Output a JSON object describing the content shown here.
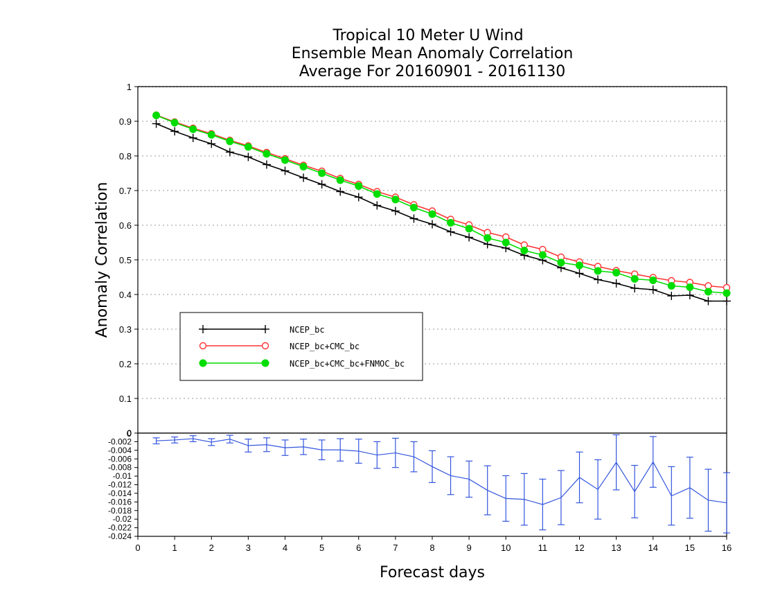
{
  "chart_data": [
    {
      "type": "line",
      "title": [
        "Tropical 10 Meter U Wind",
        "Ensemble Mean Anomaly Correlation",
        "Average For 20160901 - 20161130"
      ],
      "xlabel": "Forecast days",
      "ylabel": "Anomaly Correlation",
      "xlim": [
        0,
        16
      ],
      "ylim": [
        0,
        1
      ],
      "xticks": [
        "0",
        "1",
        "2",
        "3",
        "4",
        "5",
        "6",
        "7",
        "8",
        "9",
        "10",
        "11",
        "12",
        "13",
        "14",
        "15",
        "16"
      ],
      "yticks": [
        "0",
        "0.1",
        "0.2",
        "0.3",
        "0.4",
        "0.5",
        "0.6",
        "0.7",
        "0.8",
        "0.9",
        "1"
      ],
      "grid": "horizontal dotted",
      "legend_position": "lower-left",
      "x": [
        0.5,
        1,
        1.5,
        2,
        2.5,
        3,
        3.5,
        4,
        4.5,
        5,
        5.5,
        6,
        6.5,
        7,
        7.5,
        8,
        8.5,
        9,
        9.5,
        10,
        10.5,
        11,
        11.5,
        12,
        12.5,
        13,
        13.5,
        14,
        14.5,
        15,
        15.5,
        16
      ],
      "series": [
        {
          "name": "NCEP_bc",
          "color": "#000000",
          "marker": "plus",
          "values": [
            0.893,
            0.871,
            0.852,
            0.835,
            0.811,
            0.797,
            0.775,
            0.757,
            0.737,
            0.718,
            0.697,
            0.681,
            0.657,
            0.641,
            0.619,
            0.603,
            0.581,
            0.565,
            0.545,
            0.534,
            0.513,
            0.499,
            0.477,
            0.461,
            0.443,
            0.432,
            0.418,
            0.414,
            0.396,
            0.398,
            0.381,
            0.381
          ]
        },
        {
          "name": "NCEP_bc+CMC_bc",
          "color": "#ff3333",
          "marker": "open-circle",
          "values": [
            0.918,
            0.898,
            0.88,
            0.864,
            0.845,
            0.829,
            0.81,
            0.792,
            0.773,
            0.756,
            0.735,
            0.718,
            0.697,
            0.681,
            0.659,
            0.641,
            0.617,
            0.601,
            0.579,
            0.566,
            0.543,
            0.53,
            0.508,
            0.494,
            0.481,
            0.469,
            0.459,
            0.449,
            0.44,
            0.435,
            0.425,
            0.42
          ]
        },
        {
          "name": "NCEP_bc+CMC_bc+FNMOC_bc",
          "color": "#00dd00",
          "marker": "filled-circle",
          "values": [
            0.917,
            0.896,
            0.877,
            0.861,
            0.842,
            0.826,
            0.806,
            0.788,
            0.769,
            0.75,
            0.73,
            0.713,
            0.69,
            0.674,
            0.651,
            0.632,
            0.607,
            0.59,
            0.563,
            0.55,
            0.527,
            0.514,
            0.492,
            0.484,
            0.468,
            0.463,
            0.445,
            0.441,
            0.425,
            0.421,
            0.408,
            0.404
          ]
        }
      ]
    },
    {
      "type": "line",
      "subtype": "difference with error bars",
      "xlim": [
        0,
        16
      ],
      "ylim": [
        -0.024,
        0
      ],
      "yticks": [
        "0",
        "-0.002",
        "-0.004",
        "-0.006",
        "-0.008",
        "-0.01",
        "-0.012",
        "-0.014",
        "-0.016",
        "-0.018",
        "-0.02",
        "-0.022",
        "-0.024"
      ],
      "x": [
        0.5,
        1,
        1.5,
        2,
        2.5,
        3,
        3.5,
        4,
        4.5,
        5,
        5.5,
        6,
        6.5,
        7,
        7.5,
        8,
        8.5,
        9,
        9.5,
        10,
        10.5,
        11,
        11.5,
        12,
        12.5,
        13,
        13.5,
        14,
        14.5,
        15,
        15.5,
        16
      ],
      "series": [
        {
          "color": "#3355dd",
          "values": [
            -0.0018,
            -0.0016,
            -0.0013,
            -0.0021,
            -0.0014,
            -0.0029,
            -0.0027,
            -0.0034,
            -0.0032,
            -0.0039,
            -0.0039,
            -0.0042,
            -0.0051,
            -0.0046,
            -0.0055,
            -0.0078,
            -0.0099,
            -0.0107,
            -0.0133,
            -0.0152,
            -0.0154,
            -0.0166,
            -0.015,
            -0.0103,
            -0.0131,
            -0.0068,
            -0.0136,
            -0.0067,
            -0.0146,
            -0.0127,
            -0.0156,
            -0.0162
          ],
          "error": [
            0.0007,
            0.0007,
            0.0007,
            0.0008,
            0.0009,
            0.0015,
            0.0016,
            0.0018,
            0.0018,
            0.0023,
            0.0026,
            0.0028,
            0.0031,
            0.0034,
            0.0035,
            0.0037,
            0.0044,
            0.0042,
            0.0057,
            0.0053,
            0.006,
            0.0059,
            0.0063,
            0.0059,
            0.0069,
            0.0064,
            0.0061,
            0.0059,
            0.0068,
            0.0071,
            0.0072,
            0.007
          ]
        }
      ]
    }
  ]
}
